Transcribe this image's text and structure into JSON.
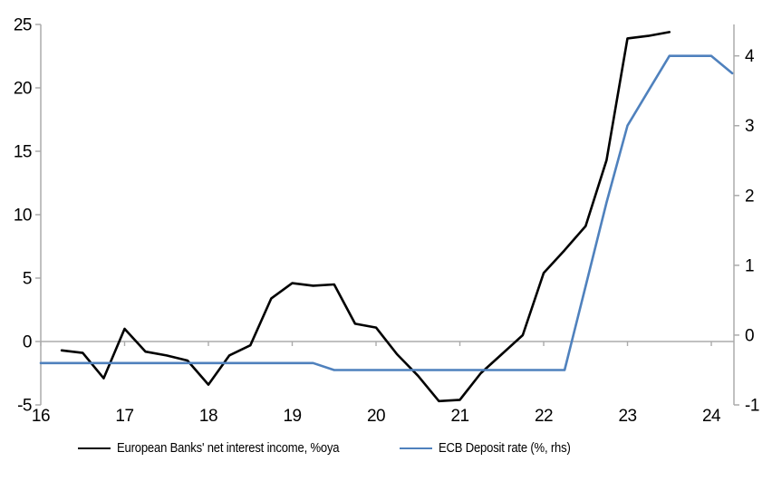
{
  "chart_data": {
    "type": "line",
    "title": "",
    "x_axis": {
      "range": [
        16,
        24.27
      ],
      "ticks": [
        16,
        17,
        18,
        19,
        20,
        21,
        22,
        23,
        24
      ],
      "tick_labels": [
        "16",
        "17",
        "18",
        "19",
        "20",
        "21",
        "22",
        "23",
        "24"
      ]
    },
    "y_axis_left": {
      "range": [
        -5,
        25
      ],
      "ticks": [
        -5,
        0,
        5,
        10,
        15,
        20,
        25
      ],
      "tick_labels": [
        "-5",
        "0",
        "5",
        "10",
        "15",
        "20",
        "25"
      ]
    },
    "y_axis_right": {
      "range": [
        -1,
        4.45
      ],
      "ticks": [
        -1,
        0,
        1,
        2,
        3,
        4
      ],
      "tick_labels": [
        "-1",
        "0",
        "1",
        "2",
        "3",
        "4"
      ]
    },
    "gridlines": {
      "zero_line_only": true
    },
    "legend_position": "bottom",
    "series": [
      {
        "name": "European Banks' net interest income, %oya",
        "color": "#000000",
        "axis": "left",
        "points": [
          [
            16.25,
            -0.7
          ],
          [
            16.5,
            -0.9
          ],
          [
            16.75,
            -2.9
          ],
          [
            17.0,
            1.0
          ],
          [
            17.25,
            -0.8
          ],
          [
            17.5,
            -1.1
          ],
          [
            17.75,
            -1.5
          ],
          [
            18.0,
            -3.4
          ],
          [
            18.25,
            -1.1
          ],
          [
            18.5,
            -0.3
          ],
          [
            18.75,
            3.4
          ],
          [
            19.0,
            4.6
          ],
          [
            19.25,
            4.4
          ],
          [
            19.5,
            4.5
          ],
          [
            19.75,
            1.4
          ],
          [
            20.0,
            1.1
          ],
          [
            20.25,
            -1.0
          ],
          [
            20.5,
            -2.7
          ],
          [
            20.75,
            -4.7
          ],
          [
            21.0,
            -4.6
          ],
          [
            21.25,
            -2.5
          ],
          [
            21.5,
            -1.0
          ],
          [
            21.75,
            0.5
          ],
          [
            22.0,
            5.4
          ],
          [
            22.25,
            7.2
          ],
          [
            22.5,
            9.1
          ],
          [
            22.75,
            14.3
          ],
          [
            23.0,
            23.9
          ],
          [
            23.25,
            24.1
          ],
          [
            23.5,
            24.4
          ]
        ]
      },
      {
        "name": "ECB Deposit rate (%, rhs)",
        "color": "#4F81BD",
        "axis": "right",
        "points": [
          [
            16.0,
            -0.4
          ],
          [
            19.25,
            -0.4
          ],
          [
            19.5,
            -0.5
          ],
          [
            22.25,
            -0.5
          ],
          [
            22.5,
            0.7
          ],
          [
            22.75,
            1.9
          ],
          [
            23.0,
            3.0
          ],
          [
            23.25,
            3.5
          ],
          [
            23.5,
            4.0
          ],
          [
            23.75,
            4.0
          ],
          [
            24.0,
            4.0
          ],
          [
            24.25,
            3.75
          ]
        ]
      }
    ]
  },
  "colors": {
    "axis_gray": "#ABABAB",
    "background": "#FFFFFF",
    "text": "#000000"
  }
}
